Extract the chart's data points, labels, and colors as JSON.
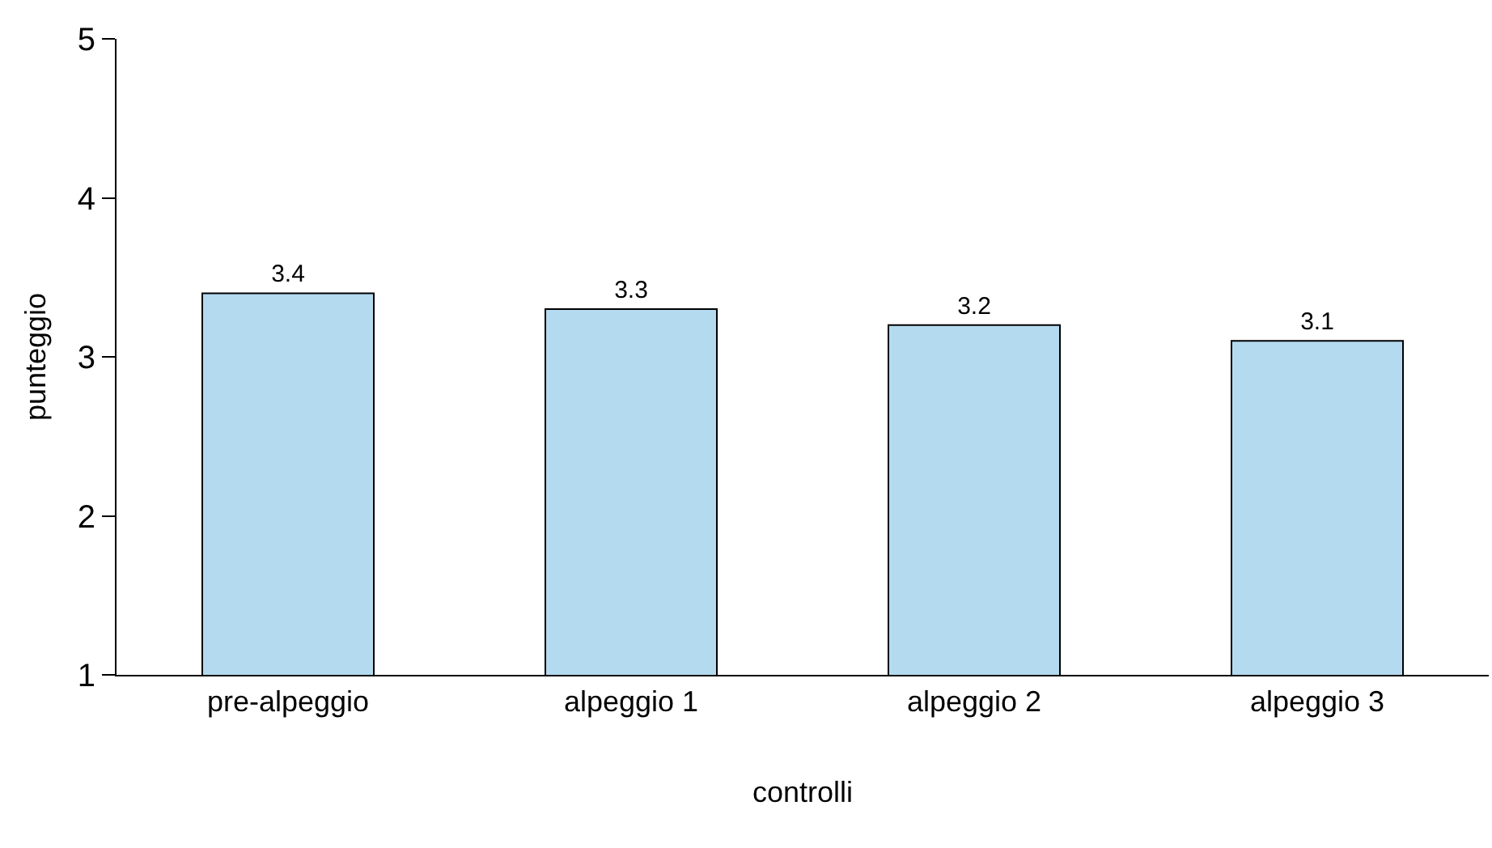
{
  "chart_data": {
    "type": "bar",
    "xlabel": "controlli",
    "ylabel": "punteggio",
    "categories": [
      "pre-alpeggio",
      "alpeggio 1",
      "alpeggio 2",
      "alpeggio 3"
    ],
    "values": [
      3.4,
      3.3,
      3.2,
      3.1
    ],
    "color": "#b4daf0",
    "ylim": [
      1,
      5
    ],
    "yticks": [
      1,
      2,
      3,
      4,
      5
    ],
    "grid": false,
    "data_labels": true
  }
}
